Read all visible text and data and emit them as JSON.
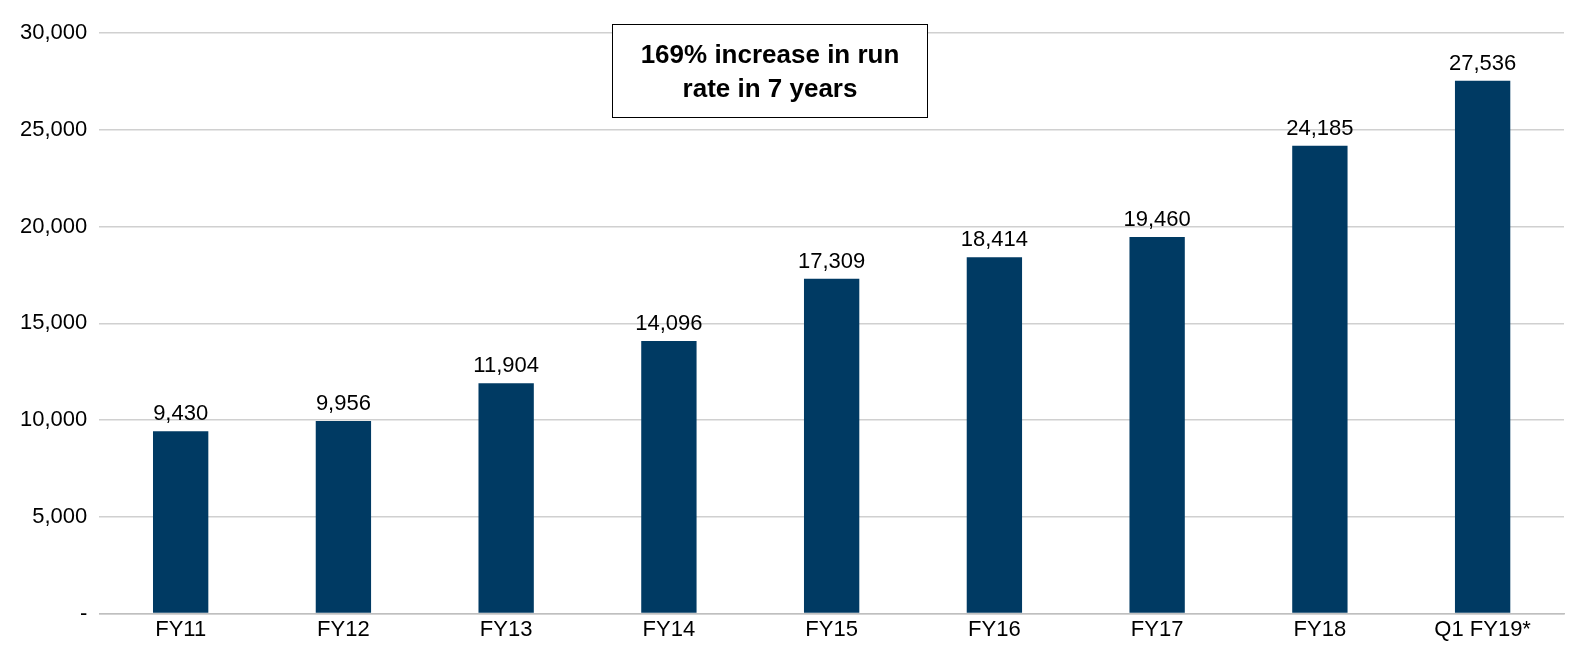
{
  "chart_data": {
    "type": "bar",
    "categories": [
      "FY11",
      "FY12",
      "FY13",
      "FY14",
      "FY15",
      "FY16",
      "FY17",
      "FY18",
      "Q1 FY19*"
    ],
    "values": [
      9430,
      9956,
      11904,
      14096,
      17309,
      18414,
      19460,
      24185,
      27536
    ],
    "color": "#003a63",
    "ylim": [
      0,
      30000
    ],
    "yticks": [
      {
        "value": 0,
        "label": "-"
      },
      {
        "value": 5000,
        "label": "5,000"
      },
      {
        "value": 10000,
        "label": "10,000"
      },
      {
        "value": 15000,
        "label": "15,000"
      },
      {
        "value": 20000,
        "label": "20,000"
      },
      {
        "value": 25000,
        "label": "25,000"
      },
      {
        "value": 30000,
        "label": "30,000"
      }
    ],
    "grid": "y",
    "legend": false,
    "value_labels": [
      "9,430",
      "9,956",
      "11,904",
      "14,096",
      "17,309",
      "18,414",
      "19,460",
      "24,185",
      "27,536"
    ],
    "annotations": [
      "169% increase in run rate in 7 years"
    ]
  }
}
